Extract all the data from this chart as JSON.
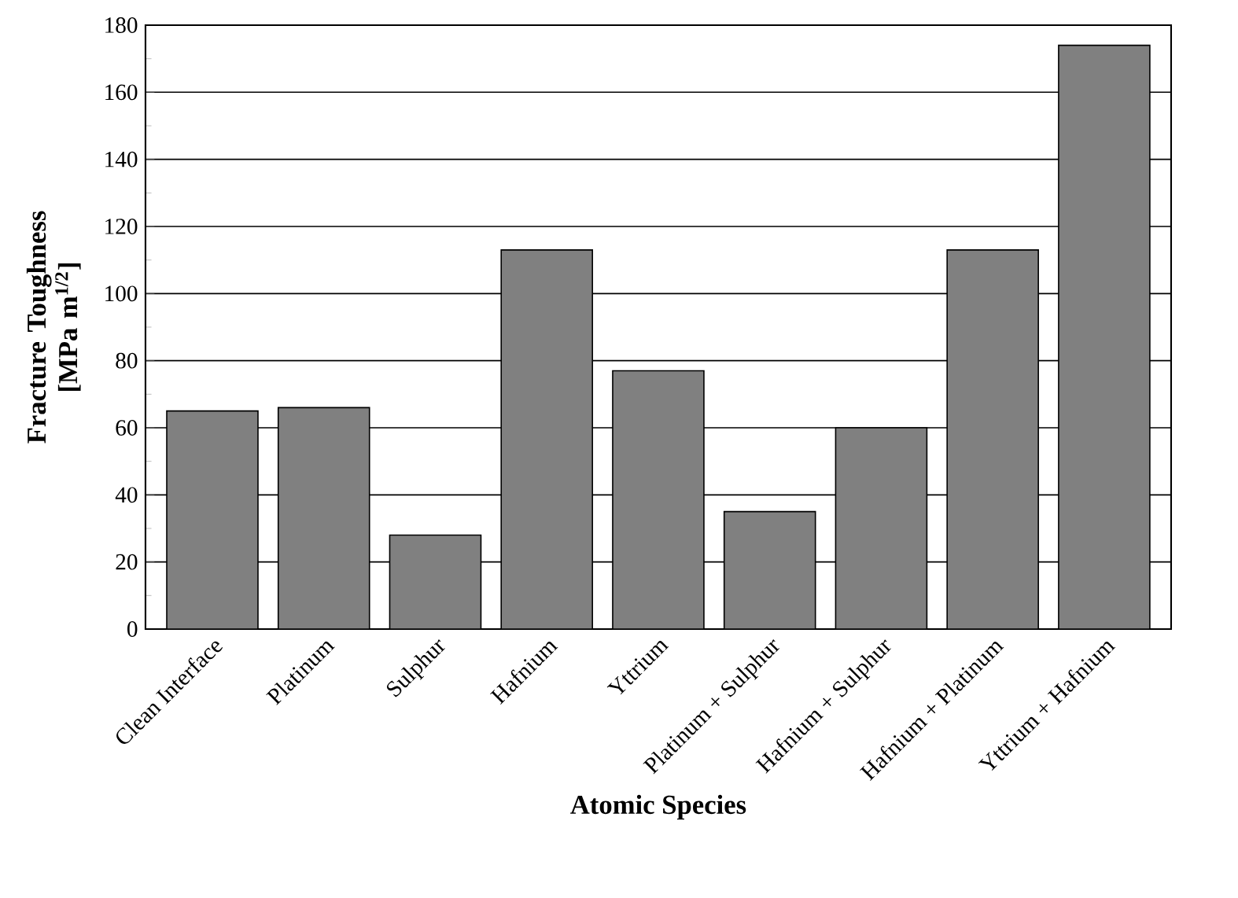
{
  "chart_data": {
    "type": "bar",
    "xlabel": "Atomic Species",
    "ylabel": "Fracture Toughness [MPa m$^{1/2}$]",
    "categories": [
      "Clean Interface",
      "Platinum",
      "Sulphur",
      "Hafnium",
      "Yttrium",
      "Platinum + Sulphur",
      "Hafnium + Sulphur",
      "Hafnium + Platinum",
      "Yttrium + Hafnium"
    ],
    "values": [
      65,
      66,
      28,
      113,
      77,
      35,
      60,
      113,
      174
    ],
    "color": "#808080",
    "ylim": [
      0,
      180
    ],
    "yticks": [
      0,
      20,
      40,
      60,
      80,
      100,
      120,
      140,
      160,
      180
    ],
    "grid": "y"
  }
}
